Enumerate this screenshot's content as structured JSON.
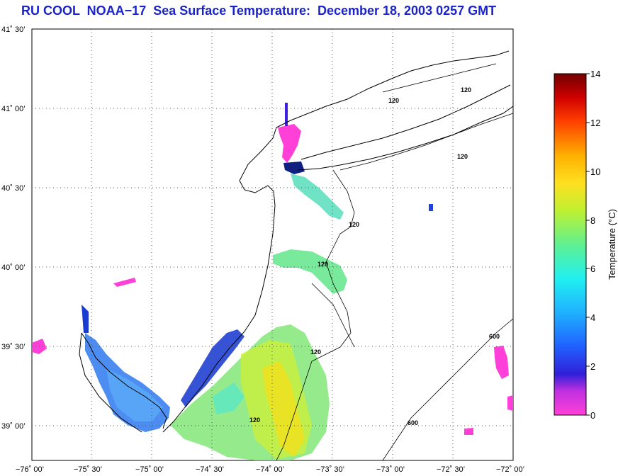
{
  "title": "RU COOL  NOAA−17  Sea Surface Temperature:  December 18, 2003 0257 GMT",
  "map": {
    "lat_labels": [
      "41˚ 30’",
      "41˚ 00’",
      "40˚ 30’",
      "40˚ 00’",
      "39˚ 30’",
      "39˚ 00’"
    ],
    "lon_labels": [
      "−76˚ 00’",
      "−75˚ 30’",
      "−75˚ 00’",
      "−74˚ 30’",
      "−74˚ 00’",
      "−73˚ 30’",
      "−73˚ 00’",
      "−72˚ 30’",
      "−72˚ 00’"
    ],
    "contour_labels": [
      "120",
      "120",
      "120",
      "120",
      "120",
      "120",
      "120",
      "600",
      "600"
    ],
    "grid": "dotted"
  },
  "colorbar": {
    "label": "Temperature (°C)",
    "ticks": [
      "14",
      "12",
      "10",
      "8",
      "6",
      "4",
      "2",
      "0"
    ],
    "range": [
      0,
      14
    ],
    "colors": [
      "#ff40d8",
      "#8020d0",
      "#2020e0",
      "#2090ff",
      "#20f0f0",
      "#60f080",
      "#e0f020",
      "#ffb000",
      "#ff2000",
      "#800000"
    ]
  }
}
